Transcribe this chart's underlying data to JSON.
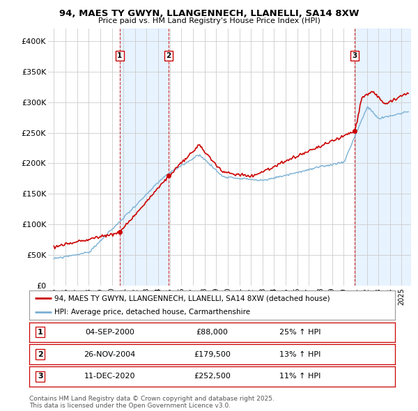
{
  "title": "94, MAES TY GWYN, LLANGENNECH, LLANELLI, SA14 8XW",
  "subtitle": "Price paid vs. HM Land Registry's House Price Index (HPI)",
  "ylabel_ticks": [
    "£0",
    "£50K",
    "£100K",
    "£150K",
    "£200K",
    "£250K",
    "£300K",
    "£350K",
    "£400K"
  ],
  "ytick_values": [
    0,
    50000,
    100000,
    150000,
    200000,
    250000,
    300000,
    350000,
    400000
  ],
  "ylim": [
    0,
    420000
  ],
  "xlim_start": 1994.5,
  "xlim_end": 2025.8,
  "xtick_years": [
    1995,
    1996,
    1997,
    1998,
    1999,
    2000,
    2001,
    2002,
    2003,
    2004,
    2005,
    2006,
    2007,
    2008,
    2009,
    2010,
    2011,
    2012,
    2013,
    2014,
    2015,
    2016,
    2017,
    2018,
    2019,
    2020,
    2021,
    2022,
    2023,
    2024,
    2025
  ],
  "legend_line1": "94, MAES TY GWYN, LLANGENNECH, LLANELLI, SA14 8XW (detached house)",
  "legend_line2": "HPI: Average price, detached house, Carmarthenshire",
  "transactions": [
    {
      "num": 1,
      "date": "04-SEP-2000",
      "price": 88000,
      "pct": "25%",
      "dir": "↑",
      "label": "1",
      "year": 2000.67
    },
    {
      "num": 2,
      "date": "26-NOV-2004",
      "price": 179500,
      "pct": "13%",
      "dir": "↑",
      "label": "2",
      "year": 2004.9
    },
    {
      "num": 3,
      "date": "11-DEC-2020",
      "price": 252500,
      "pct": "11%",
      "dir": "↑",
      "label": "3",
      "year": 2020.95
    }
  ],
  "note": "Contains HM Land Registry data © Crown copyright and database right 2025.\nThis data is licensed under the Open Government Licence v3.0.",
  "line_color_red": "#cc0000",
  "line_color_blue": "#7ab0d4",
  "shade_color": "#ddeeff",
  "bg_color": "#ffffff",
  "grid_color": "#cccccc",
  "vline_color": "#cc0000"
}
